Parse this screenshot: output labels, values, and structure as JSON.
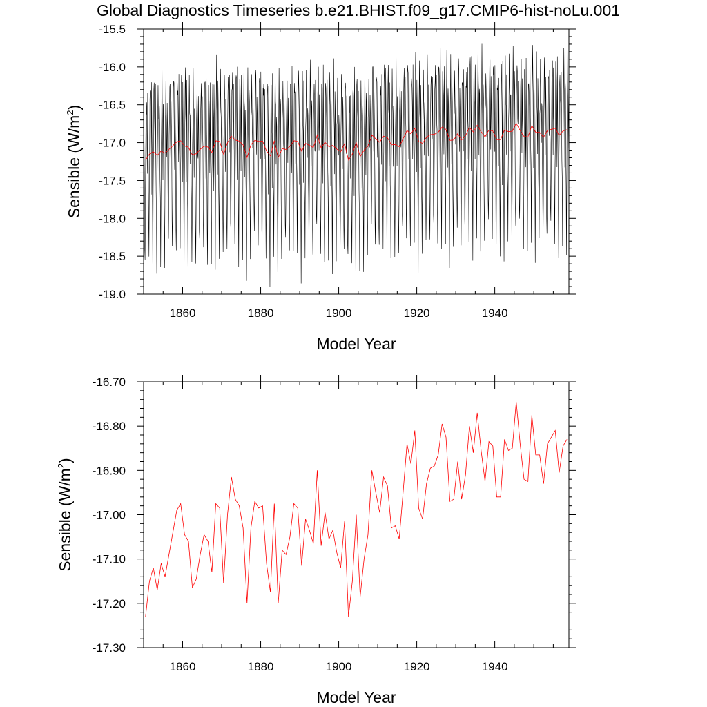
{
  "title": "Global Diagnostics Timeseries b.e21.BHIST.f09_g17.CMIP6-hist-noLu.001",
  "colors": {
    "monthly": "#000000",
    "annual": "#ff0000",
    "axis": "#000000"
  },
  "chart_data": [
    {
      "type": "line",
      "xlabel": "Model Year",
      "ylabel_main": "Sensible (W/m",
      "ylabel_sup": "2",
      "ylabel_tail": ")",
      "xlim": [
        1850,
        1959
      ],
      "ylim": [
        -19.0,
        -15.5
      ],
      "x_ticks": [
        1860,
        1880,
        1900,
        1920,
        1940
      ],
      "x_tick_labels": [
        "1860",
        "1880",
        "1900",
        "1920",
        "1940"
      ],
      "y_ticks": [
        -19.0,
        -18.5,
        -18.0,
        -17.5,
        -17.0,
        -16.5,
        -16.0,
        -15.5
      ],
      "y_tick_labels": [
        "-19.0",
        "-18.5",
        "-18.0",
        "-17.5",
        "-17.0",
        "-16.5",
        "-16.0",
        "-15.5"
      ],
      "monthly_cycle": [
        -16.25,
        -16.7,
        -17.25,
        -17.9,
        -18.45,
        -17.6,
        -16.9,
        -16.4,
        -16.1,
        -16.35,
        -16.8,
        -17.3
      ],
      "series": [
        {
          "style": "monthly",
          "x_start": 1850,
          "step_years": 0.0833333,
          "years": 109,
          "note_shape": "seasonal cycle about annual mean"
        },
        {
          "style": "annual",
          "values_ref": "annual_means"
        }
      ]
    },
    {
      "type": "line",
      "xlabel": "Model Year",
      "ylabel_main": "Sensible (W/m",
      "ylabel_sup": "2",
      "ylabel_tail": ")",
      "xlim": [
        1850,
        1959
      ],
      "ylim": [
        -17.3,
        -16.7
      ],
      "x_ticks": [
        1860,
        1880,
        1900,
        1920,
        1940
      ],
      "x_tick_labels": [
        "1860",
        "1880",
        "1900",
        "1920",
        "1940"
      ],
      "y_ticks": [
        -17.3,
        -17.2,
        -17.1,
        -17.0,
        -16.9,
        -16.8,
        -16.7
      ],
      "y_tick_labels": [
        "-17.30",
        "-17.20",
        "-17.10",
        "-17.00",
        "-16.90",
        "-16.80",
        "-16.70"
      ],
      "series": [
        {
          "style": "annual",
          "values_ref": "annual_means"
        }
      ]
    }
  ],
  "annual_means": {
    "x": [
      1850,
      1851,
      1852,
      1853,
      1854,
      1855,
      1856,
      1857,
      1858,
      1859,
      1860,
      1861,
      1862,
      1863,
      1864,
      1865,
      1866,
      1867,
      1868,
      1869,
      1870,
      1871,
      1872,
      1873,
      1874,
      1875,
      1876,
      1877,
      1878,
      1879,
      1880,
      1881,
      1882,
      1883,
      1884,
      1885,
      1886,
      1887,
      1888,
      1889,
      1890,
      1891,
      1892,
      1893,
      1894,
      1895,
      1896,
      1897,
      1898,
      1899,
      1900,
      1901,
      1902,
      1903,
      1904,
      1905,
      1906,
      1907,
      1908,
      1909,
      1910,
      1911,
      1912,
      1913,
      1914,
      1915,
      1916,
      1917,
      1918,
      1919,
      1920,
      1921,
      1922,
      1923,
      1924,
      1925,
      1926,
      1927,
      1928,
      1929,
      1930,
      1931,
      1932,
      1933,
      1934,
      1935,
      1936,
      1937,
      1938,
      1939,
      1940,
      1941,
      1942,
      1943,
      1944,
      1945,
      1946,
      1947,
      1948,
      1949,
      1950,
      1951,
      1952,
      1953,
      1954,
      1955,
      1956,
      1957,
      1958
    ],
    "y": [
      -17.23,
      -17.15,
      -17.12,
      -17.17,
      -17.11,
      -17.14,
      -17.09,
      -17.04,
      -16.99,
      -16.975,
      -17.045,
      -17.06,
      -17.165,
      -17.145,
      -17.09,
      -17.045,
      -17.06,
      -17.13,
      -16.975,
      -16.985,
      -17.155,
      -17.0,
      -16.915,
      -16.965,
      -16.98,
      -17.03,
      -17.2,
      -17.03,
      -16.97,
      -16.985,
      -16.98,
      -17.11,
      -17.175,
      -16.975,
      -17.2,
      -17.08,
      -17.09,
      -17.05,
      -16.975,
      -16.985,
      -17.115,
      -17.01,
      -17.035,
      -17.065,
      -16.9,
      -17.07,
      -16.995,
      -17.055,
      -17.035,
      -17.085,
      -17.12,
      -17.015,
      -17.23,
      -17.15,
      -17.0,
      -17.185,
      -17.1,
      -17.045,
      -16.9,
      -16.95,
      -16.995,
      -16.915,
      -16.935,
      -17.03,
      -17.025,
      -17.055,
      -16.95,
      -16.84,
      -16.885,
      -16.81,
      -16.985,
      -17.01,
      -16.93,
      -16.895,
      -16.89,
      -16.865,
      -16.795,
      -16.825,
      -16.97,
      -16.965,
      -16.88,
      -16.965,
      -16.91,
      -16.8,
      -16.86,
      -16.77,
      -16.855,
      -16.925,
      -16.835,
      -16.845,
      -16.96,
      -16.96,
      -16.83,
      -16.855,
      -16.85,
      -16.745,
      -16.84,
      -16.92,
      -16.925,
      -16.775,
      -16.865,
      -16.865,
      -16.93,
      -16.84,
      -16.825,
      -16.81,
      -16.905,
      -16.845,
      -16.83
    ]
  }
}
